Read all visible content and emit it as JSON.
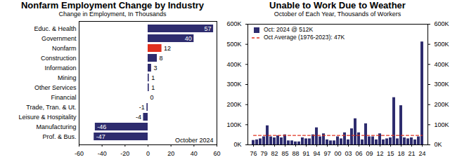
{
  "chart_data": [
    {
      "type": "bar",
      "title": "Nonfarm Employment Change by Industry",
      "subtitle": "Change in Employment, In Thousands",
      "orientation": "horizontal",
      "categories": [
        "Educ. & Health",
        "Government",
        "Nonfarm",
        "Construction",
        "Information",
        "Mining",
        "Other Services",
        "Financial",
        "Trade, Tran. & Ut.",
        "Leisure & Hospitality",
        "Manufacturing",
        "Prof. & Bus."
      ],
      "values": [
        57,
        40,
        12,
        8,
        3,
        1,
        1,
        0,
        -1,
        -4,
        -46,
        -47
      ],
      "colors": [
        "#2e2c6e",
        "#2e2c6e",
        "#e0301e",
        "#2e2c6e",
        "#2e2c6e",
        "#2e2c6e",
        "#2e2c6e",
        "#2e2c6e",
        "#2e2c6e",
        "#2e2c6e",
        "#2e2c6e",
        "#2e2c6e"
      ],
      "xlim": [
        -60,
        60
      ],
      "xticks": [
        -60,
        -40,
        -20,
        0,
        20,
        40,
        60
      ],
      "data_labels": true,
      "annotation": "October 2024",
      "grid": false
    },
    {
      "type": "bar",
      "title": "Unable to Work Due to Weather",
      "subtitle": "October of Each Year, Thousands of Workers",
      "categories": [
        "76",
        null,
        null,
        "79",
        null,
        null,
        "82",
        null,
        null,
        "85",
        null,
        null,
        "88",
        null,
        null,
        "91",
        null,
        null,
        "94",
        null,
        null,
        "97",
        null,
        null,
        "00",
        null,
        null,
        "03",
        null,
        null,
        "06",
        null,
        null,
        "09",
        null,
        null,
        "12",
        null,
        null,
        "15",
        null,
        null,
        "18",
        null,
        null,
        "21",
        null,
        null,
        "24"
      ],
      "series": [
        {
          "name": "Oct: 2024 @ 512K",
          "type": "bar",
          "color": "#2e2c6e",
          "values": [
            22,
            25,
            30,
            40,
            95,
            40,
            35,
            45,
            35,
            50,
            20,
            20,
            15,
            15,
            35,
            30,
            30,
            50,
            85,
            40,
            55,
            25,
            20,
            20,
            40,
            30,
            60,
            25,
            80,
            130,
            60,
            25,
            105,
            40,
            40,
            25,
            55,
            25,
            30,
            35,
            235,
            30,
            195,
            35,
            30,
            35,
            25,
            40,
            512
          ]
        },
        {
          "name": "Oct Average (1976-2023): 47K",
          "type": "line",
          "color": "#e0301e",
          "line_style": "dashed",
          "values": [
            47,
            47,
            47,
            47,
            47,
            47,
            47,
            47,
            47,
            47,
            47,
            47,
            47,
            47,
            47,
            47,
            47,
            47,
            47,
            47,
            47,
            47,
            47,
            47,
            47,
            47,
            47,
            47,
            47,
            47,
            47,
            47,
            47,
            47,
            47,
            47,
            47,
            47,
            47,
            47,
            47,
            47,
            47,
            47,
            47,
            47,
            47,
            47,
            47
          ]
        }
      ],
      "ylim": [
        0,
        600
      ],
      "yticks": [
        {
          "value": 0,
          "label": "0K"
        },
        {
          "value": 100,
          "label": "100K"
        },
        {
          "value": 200,
          "label": "200K"
        },
        {
          "value": 300,
          "label": "300K"
        },
        {
          "value": 400,
          "label": "400K"
        },
        {
          "value": 500,
          "label": "500K"
        },
        {
          "value": 600,
          "label": "600K"
        }
      ],
      "legend": "upper left",
      "grid": false
    }
  ]
}
